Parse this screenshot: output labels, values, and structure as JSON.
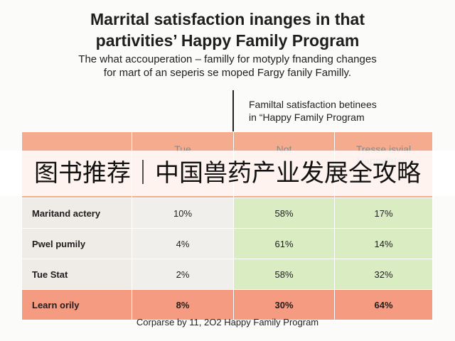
{
  "header": {
    "title": [
      "Marrital satisfaction inanges in that",
      "partivities’ Happy Family Program"
    ],
    "subtitle": [
      "The what accouperation – familly for motyply fnanding changes",
      "for mart of an seperis se moped Fargy fanily Familly."
    ]
  },
  "table_heading": [
    "Familtal satisfaction betinees",
    "in “Happy Family Program"
  ],
  "table": {
    "header": [
      "",
      "Tue",
      "Not",
      "Tresse isvial Happyfation"
    ],
    "rows": [
      [
        "Maritand actery",
        "10%",
        "58%",
        "17%"
      ],
      [
        "Pwel pumily",
        "4%",
        "61%",
        "14%"
      ],
      [
        "Tue Stat",
        "2%",
        "58%",
        "32%"
      ],
      [
        "Learn orily",
        "8%",
        "30%",
        "64%"
      ]
    ]
  },
  "footer": "Corparse by 11, 2O2 Happy Family Program",
  "banner": {
    "text": "图书推荐｜中国兽药产业发展全攻略"
  }
}
